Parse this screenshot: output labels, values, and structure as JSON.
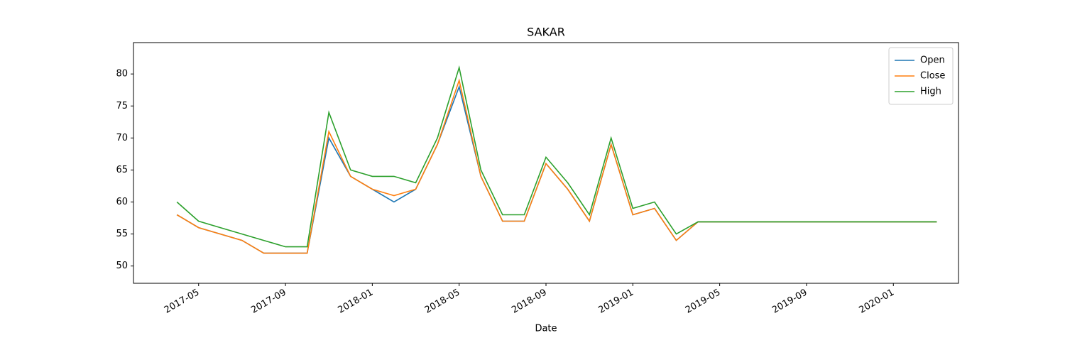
{
  "chart_data": {
    "type": "line",
    "title": "SAKAR",
    "x_label": "Date",
    "x": [
      "2017-04",
      "2017-05",
      "2017-06",
      "2017-07",
      "2017-08",
      "2017-09",
      "2017-10",
      "2017-11",
      "2017-12",
      "2018-01",
      "2018-02",
      "2018-03",
      "2018-04",
      "2018-05",
      "2018-06",
      "2018-07",
      "2018-08",
      "2018-09",
      "2018-10",
      "2018-11",
      "2018-12",
      "2019-01",
      "2019-02",
      "2019-03",
      "2019-04",
      "2019-05",
      "2019-06",
      "2019-07",
      "2019-08",
      "2019-09",
      "2019-10",
      "2019-11",
      "2019-12",
      "2020-01",
      "2020-02",
      "2020-03"
    ],
    "series": [
      {
        "name": "Open",
        "color": "#1f77b4",
        "values": [
          58,
          56,
          55,
          54,
          52,
          52,
          52,
          70,
          64,
          62,
          60,
          62,
          69,
          78,
          64,
          57,
          57,
          66,
          62,
          57,
          69,
          58,
          59,
          54,
          56.9,
          56.9,
          56.9,
          56.9,
          56.9,
          56.9,
          56.9,
          56.9,
          56.9,
          56.9,
          56.9,
          56.9
        ]
      },
      {
        "name": "Close",
        "color": "#ff7f0e",
        "values": [
          58,
          56,
          55,
          54,
          52,
          52,
          52,
          71,
          64,
          62,
          61,
          62,
          69,
          79,
          64,
          57,
          57,
          66,
          62,
          57,
          69,
          58,
          59,
          54,
          56.9,
          56.9,
          56.9,
          56.9,
          56.9,
          56.9,
          56.9,
          56.9,
          56.9,
          56.9,
          56.9,
          56.9
        ]
      },
      {
        "name": "High",
        "color": "#2ca02c",
        "values": [
          60,
          57,
          56,
          55,
          54,
          53,
          53,
          74,
          65,
          64,
          64,
          63,
          70,
          81,
          65,
          58,
          58,
          67,
          63,
          58,
          70,
          59,
          60,
          55,
          56.9,
          56.9,
          56.9,
          56.9,
          56.9,
          56.9,
          56.9,
          56.9,
          56.9,
          56.9,
          56.9,
          56.9
        ]
      }
    ],
    "xlim": [
      "2017-02",
      "2020-04"
    ],
    "xticks": [
      "2017-05",
      "2017-09",
      "2018-01",
      "2018-05",
      "2018-09",
      "2019-01",
      "2019-05",
      "2019-09",
      "2020-01"
    ],
    "ylim": [
      47.3,
      84.9
    ],
    "yticks": [
      50,
      55,
      60,
      65,
      70,
      75,
      80
    ],
    "grid": false,
    "legend": "upper right"
  }
}
